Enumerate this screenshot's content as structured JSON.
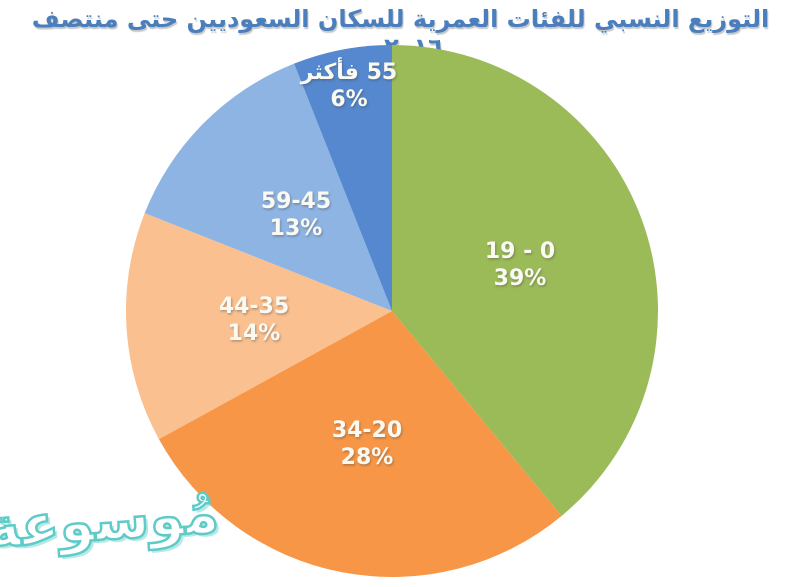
{
  "page": {
    "title": "التوزيع النسبي للفئات العمرية للسكان السعوديين حتى منتصف ٢٠١٦ م",
    "title_color": "#4a7ebc",
    "watermark": "مُوسوعة",
    "watermark_color": "#5ecbc8",
    "background": "#ffffff"
  },
  "chart_data": {
    "type": "pie",
    "title": "التوزيع النسبي للفئات العمرية للسكان السعوديين حتى منتصف ٢٠١٦ م",
    "unit": "%",
    "start_angle": "12-oclock",
    "direction": "clockwise",
    "legend": "none",
    "label_text_color": "#fbfaf2",
    "categories": [
      "19 - 0",
      "34-20",
      "44-35",
      "59-45",
      "55 فأكثر"
    ],
    "values": [
      39,
      28,
      14,
      13,
      6
    ],
    "slices": [
      {
        "label": "19 - 0",
        "value": 39,
        "percent_label": "39%",
        "color": "#9bbb59"
      },
      {
        "label": "34-20",
        "value": 28,
        "percent_label": "28%",
        "color": "#f79646"
      },
      {
        "label": "44-35",
        "value": 14,
        "percent_label": "14%",
        "color": "#fac090"
      },
      {
        "label": "59-45",
        "value": 13,
        "percent_label": "13%",
        "color": "#8eb4e3"
      },
      {
        "label": "55 فأكثر",
        "value": 6,
        "percent_label": "6%",
        "color": "#5588ce"
      }
    ]
  }
}
